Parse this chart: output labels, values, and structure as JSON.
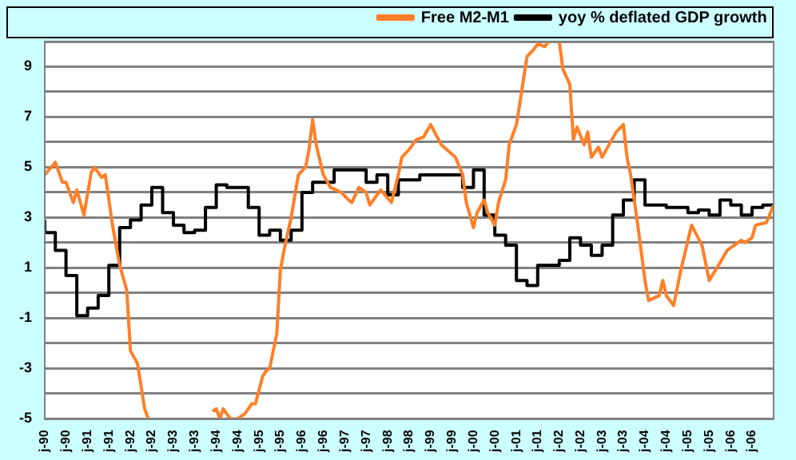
{
  "chart_data": {
    "type": "line",
    "legend": "top",
    "grid": "y",
    "marker": "none",
    "line_style": "solid",
    "xlim": [
      "1990-01",
      "2007-01"
    ],
    "ylim": [
      -5,
      10
    ],
    "xticks": [
      {
        "value": "1990-01",
        "label": "j-90"
      },
      {
        "value": "1990-07",
        "label": "j-90"
      },
      {
        "value": "1991-01",
        "label": "j-91"
      },
      {
        "value": "1991-07",
        "label": "j-91"
      },
      {
        "value": "1992-01",
        "label": "j-92"
      },
      {
        "value": "1992-07",
        "label": "j-92"
      },
      {
        "value": "1993-01",
        "label": "j-93"
      },
      {
        "value": "1993-07",
        "label": "j-93"
      },
      {
        "value": "1994-01",
        "label": "j-94"
      },
      {
        "value": "1994-07",
        "label": "j-94"
      },
      {
        "value": "1995-01",
        "label": "j-95"
      },
      {
        "value": "1995-07",
        "label": "j-95"
      },
      {
        "value": "1996-01",
        "label": "j-96"
      },
      {
        "value": "1996-07",
        "label": "j-96"
      },
      {
        "value": "1997-01",
        "label": "j-97"
      },
      {
        "value": "1997-07",
        "label": "j-97"
      },
      {
        "value": "1998-01",
        "label": "j-98"
      },
      {
        "value": "1998-07",
        "label": "j-98"
      },
      {
        "value": "1999-01",
        "label": "j-99"
      },
      {
        "value": "1999-07",
        "label": "j-99"
      },
      {
        "value": "2000-01",
        "label": "j-00"
      },
      {
        "value": "2000-07",
        "label": "j-00"
      },
      {
        "value": "2001-01",
        "label": "j-01"
      },
      {
        "value": "2001-07",
        "label": "j-01"
      },
      {
        "value": "2002-01",
        "label": "j-02"
      },
      {
        "value": "2002-07",
        "label": "j-02"
      },
      {
        "value": "2003-01",
        "label": "j-03"
      },
      {
        "value": "2003-07",
        "label": "j-03"
      },
      {
        "value": "2004-01",
        "label": "j-04"
      },
      {
        "value": "2004-07",
        "label": "j-04"
      },
      {
        "value": "2005-01",
        "label": "j-05"
      },
      {
        "value": "2005-07",
        "label": "j-05"
      },
      {
        "value": "2006-01",
        "label": "j-06"
      },
      {
        "value": "2006-07",
        "label": "j-06"
      }
    ],
    "yticks": [
      -5,
      {
        "value": -4,
        "label": null
      },
      -3,
      {
        "value": -2,
        "label": null
      },
      -1,
      {
        "value": 0,
        "label": null
      },
      1,
      {
        "value": 2,
        "label": null
      },
      3,
      {
        "value": 4,
        "label": null
      },
      5,
      {
        "value": 6,
        "label": null
      },
      7,
      {
        "value": 8,
        "label": null
      },
      9,
      {
        "value": 10,
        "label": null
      }
    ],
    "series": [
      {
        "name": "Free M2-M1",
        "color": "#ff7f27",
        "x": [
          "1990-01",
          "1990-04",
          "1990-06",
          "1990-07",
          "1990-09",
          "1990-10",
          "1990-12",
          "1991-02",
          "1991-03",
          "1991-05",
          "1991-06",
          "1991-08",
          "1991-10",
          "1991-11",
          "1991-12",
          "1992-01",
          "1992-03",
          "1992-05",
          "1992-06",
          "1993-03",
          "1993-12",
          "1994-01",
          "1994-02",
          "1994-03",
          "1994-05",
          "1994-07",
          "1994-09",
          "1994-11",
          "1994-12",
          "1995-02",
          "1995-03",
          "1995-04",
          "1995-06",
          "1995-07",
          "1995-08",
          "1995-10",
          "1995-12",
          "1996-02",
          "1996-03",
          "1996-04",
          "1996-05",
          "1996-07",
          "1996-09",
          "1996-12",
          "1997-02",
          "1997-03",
          "1997-05",
          "1997-07",
          "1997-08",
          "1997-11",
          "1998-02",
          "1998-04",
          "1998-05",
          "1998-07",
          "1998-09",
          "1998-11",
          "1999-01",
          "1999-04",
          "1999-08",
          "1999-10",
          "1999-11",
          "2000-01",
          "2000-02",
          "2000-04",
          "2000-05",
          "2000-07",
          "2000-08",
          "2000-10",
          "2000-11",
          "2001-01",
          "2001-02",
          "2001-04",
          "2001-06",
          "2001-07",
          "2001-09",
          "2001-10",
          "2001-11",
          "2002-01",
          "2002-02",
          "2002-04",
          "2002-05",
          "2002-06",
          "2002-08",
          "2002-09",
          "2002-10",
          "2002-12",
          "2003-01",
          "2003-03",
          "2003-05",
          "2003-07",
          "2003-08",
          "2003-09",
          "2003-11",
          "2004-01",
          "2004-02",
          "2004-05",
          "2004-06",
          "2004-07",
          "2004-09",
          "2004-11",
          "2005-02",
          "2005-05",
          "2005-07",
          "2005-10",
          "2005-12",
          "2006-04",
          "2006-05",
          "2006-07",
          "2006-08",
          "2006-11",
          "2007-01"
        ],
        "values": [
          4.7,
          5.2,
          4.4,
          4.4,
          3.6,
          4.1,
          3.1,
          4.8,
          5.0,
          4.6,
          4.7,
          2.7,
          1.1,
          0.6,
          0.1,
          -2.3,
          -2.8,
          -4.6,
          -5,
          null,
          -4.7,
          -4.6,
          -5,
          -4.6,
          -5,
          -5,
          -4.8,
          -4.4,
          -4.4,
          -3.3,
          -3.1,
          -3.0,
          -1.6,
          0.9,
          1.7,
          3.0,
          4.7,
          5.0,
          5.7,
          6.9,
          5.9,
          4.7,
          4.2,
          4.0,
          3.7,
          3.6,
          4.2,
          4.0,
          3.5,
          4.1,
          3.6,
          4.7,
          5.4,
          5.7,
          6.1,
          6.2,
          6.7,
          5.9,
          5.4,
          4.7,
          3.6,
          2.6,
          3.2,
          3.7,
          3.2,
          2.7,
          3.6,
          4.5,
          5.9,
          6.7,
          7.6,
          9.4,
          9.7,
          9.9,
          9.8,
          10,
          null,
          10,
          8.9,
          8.3,
          6.1,
          6.6,
          5.9,
          6.4,
          5.4,
          5.8,
          5.4,
          5.9,
          6.4,
          6.7,
          5.4,
          4.7,
          2.7,
          0.5,
          -0.3,
          -0.1,
          0.5,
          -0.1,
          -0.5,
          0.9,
          2.7,
          1.9,
          0.5,
          1.2,
          1.7,
          2.1,
          2.0,
          2.2,
          2.7,
          2.8,
          3.5
        ]
      },
      {
        "name": "yoy % deflated GDP growth",
        "color": "#000000",
        "type": "step",
        "x": [
          "1990-01",
          "1990-04",
          "1990-07",
          "1990-10",
          "1991-01",
          "1991-04",
          "1991-07",
          "1991-10",
          "1992-01",
          "1992-04",
          "1992-07",
          "1992-10",
          "1993-01",
          "1993-04",
          "1993-07",
          "1993-10",
          "1994-01",
          "1994-04",
          "1994-10",
          "1995-01",
          "1995-04",
          "1995-07",
          "1995-10",
          "1996-01",
          "1996-04",
          "1996-10",
          "1997-07",
          "1997-10",
          "1998-01",
          "1998-04",
          "1998-10",
          "1999-10",
          "2000-01",
          "2000-04",
          "2000-07",
          "2000-10",
          "2001-01",
          "2001-04",
          "2001-07",
          "2002-01",
          "2002-04",
          "2002-07",
          "2002-10",
          "2003-01",
          "2003-04",
          "2003-07",
          "2003-10",
          "2004-01",
          "2004-07",
          "2005-01",
          "2005-04",
          "2005-07",
          "2005-10",
          "2006-01",
          "2006-04",
          "2006-07",
          "2006-10",
          "2007-01"
        ],
        "values": [
          2.9,
          2.4,
          1.7,
          0.7,
          -0.9,
          -0.6,
          -0.1,
          1.1,
          2.6,
          2.9,
          3.5,
          4.2,
          3.2,
          2.7,
          2.4,
          2.5,
          3.4,
          4.3,
          4.2,
          3.4,
          2.3,
          2.5,
          2.1,
          2.5,
          4.0,
          4.4,
          4.9,
          4.4,
          4.7,
          3.9,
          4.5,
          4.7,
          4.2,
          4.9,
          3.1,
          2.3,
          1.9,
          0.5,
          0.3,
          1.1,
          1.3,
          2.2,
          1.9,
          1.5,
          1.9,
          3.1,
          3.7,
          4.5,
          3.5,
          3.4,
          3.2,
          3.3,
          3.1,
          3.7,
          3.5,
          3.1,
          3.4,
          3.5
        ]
      }
    ]
  }
}
